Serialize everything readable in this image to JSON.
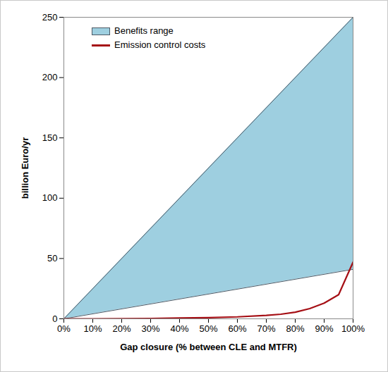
{
  "chart_data": {
    "type": "area",
    "xlabel": "Gap closure (% between CLE and MTFR)",
    "ylabel": "billion Euro/yr",
    "xlim": [
      0,
      100
    ],
    "ylim": [
      0,
      250
    ],
    "xticks": [
      {
        "value": 0,
        "label": "0%"
      },
      {
        "value": 10,
        "label": "10%"
      },
      {
        "value": 20,
        "label": "20%"
      },
      {
        "value": 30,
        "label": "30%"
      },
      {
        "value": 40,
        "label": "40%"
      },
      {
        "value": 50,
        "label": "50%"
      },
      {
        "value": 60,
        "label": "60%"
      },
      {
        "value": 70,
        "label": "70%"
      },
      {
        "value": 80,
        "label": "80%"
      },
      {
        "value": 90,
        "label": "90%"
      },
      {
        "value": 100,
        "label": "100%"
      }
    ],
    "yticks": [
      0,
      50,
      100,
      150,
      200,
      250
    ],
    "grid": false,
    "legend": "top-left",
    "series": [
      {
        "name": "Benefits range",
        "type": "area",
        "color": "#9ecfe0",
        "x": [
          0,
          100
        ],
        "lower": [
          0,
          41
        ],
        "upper": [
          0,
          250
        ]
      },
      {
        "name": "Emission control costs",
        "type": "line",
        "color": "#a50f15",
        "x": [
          0,
          10,
          20,
          30,
          40,
          50,
          60,
          70,
          75,
          80,
          85,
          90,
          95,
          100
        ],
        "values": [
          0,
          0,
          0.1,
          0.3,
          0.6,
          1,
          1.6,
          2.8,
          3.8,
          5.5,
          8.5,
          13,
          20,
          47
        ]
      }
    ]
  }
}
